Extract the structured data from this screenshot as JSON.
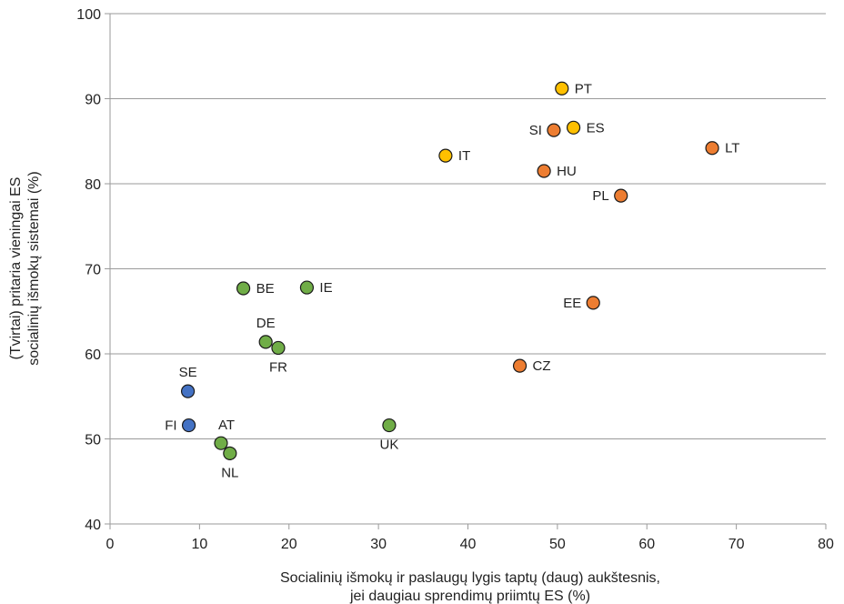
{
  "chart_data": {
    "type": "scatter",
    "title": "",
    "xlabel": "Socialinių išmokų ir paslaugų lygis taptų (daug) aukštesnis,",
    "xlabel2": "jei daugiau sprendimų priimtų ES (%)",
    "ylabel": "(Tvirtai) pritaria vieningai ES",
    "ylabel2": "socialinių išmokų sistemai (%)",
    "xlim": [
      0,
      80
    ],
    "ylim": [
      40,
      100
    ],
    "xticks": [
      0,
      10,
      20,
      30,
      40,
      50,
      60,
      70,
      80
    ],
    "yticks": [
      40,
      50,
      60,
      70,
      80,
      90,
      100
    ],
    "grid": "horizontal",
    "colors": {
      "blue": "#4472C4",
      "green": "#70AD47",
      "yellow": "#FFC000",
      "orange": "#ED7D31",
      "grid": "#9a9a9a"
    },
    "points": [
      {
        "label": "SE",
        "x": 8.7,
        "y": 55.6,
        "color": "blue",
        "pos": "above"
      },
      {
        "label": "FI",
        "x": 8.8,
        "y": 51.6,
        "color": "blue",
        "pos": "left"
      },
      {
        "label": "AT",
        "x": 12.4,
        "y": 49.5,
        "color": "green",
        "pos": "aboveright"
      },
      {
        "label": "NL",
        "x": 13.4,
        "y": 48.3,
        "color": "green",
        "pos": "below"
      },
      {
        "label": "BE",
        "x": 14.9,
        "y": 67.7,
        "color": "green",
        "pos": "right"
      },
      {
        "label": "IE",
        "x": 22.0,
        "y": 67.8,
        "color": "green",
        "pos": "right"
      },
      {
        "label": "DE",
        "x": 17.4,
        "y": 61.4,
        "color": "green",
        "pos": "above"
      },
      {
        "label": "FR",
        "x": 18.8,
        "y": 60.7,
        "color": "green",
        "pos": "below"
      },
      {
        "label": "UK",
        "x": 31.2,
        "y": 51.6,
        "color": "green",
        "pos": "below"
      },
      {
        "label": "IT",
        "x": 37.5,
        "y": 83.3,
        "color": "yellow",
        "pos": "right"
      },
      {
        "label": "PT",
        "x": 50.5,
        "y": 91.2,
        "color": "yellow",
        "pos": "right"
      },
      {
        "label": "ES",
        "x": 51.8,
        "y": 86.6,
        "color": "yellow",
        "pos": "right"
      },
      {
        "label": "SI",
        "x": 49.6,
        "y": 86.3,
        "color": "orange",
        "pos": "left"
      },
      {
        "label": "HU",
        "x": 48.5,
        "y": 81.5,
        "color": "orange",
        "pos": "right"
      },
      {
        "label": "PL",
        "x": 57.1,
        "y": 78.6,
        "color": "orange",
        "pos": "left"
      },
      {
        "label": "LT",
        "x": 67.3,
        "y": 84.2,
        "color": "orange",
        "pos": "right"
      },
      {
        "label": "EE",
        "x": 54.0,
        "y": 66.0,
        "color": "orange",
        "pos": "left"
      },
      {
        "label": "CZ",
        "x": 45.8,
        "y": 58.6,
        "color": "orange",
        "pos": "right"
      }
    ]
  }
}
